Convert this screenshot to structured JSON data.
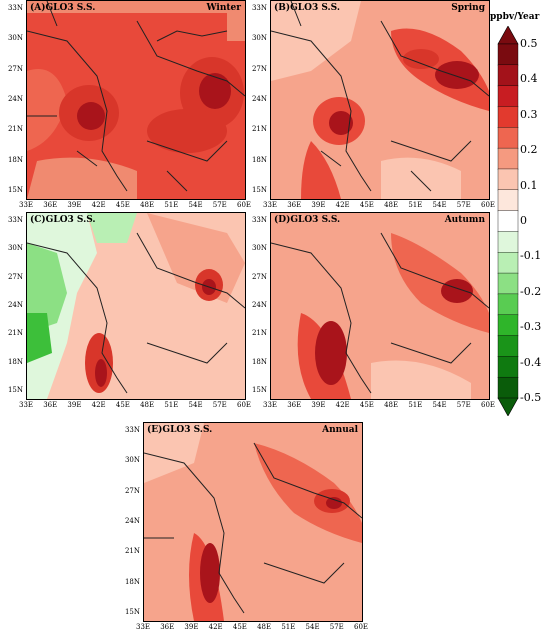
{
  "panels": [
    {
      "id": "A",
      "title": "(A)GLO3  S.S.",
      "season": "Winter"
    },
    {
      "id": "B",
      "title": "(B)GLO3  S.S.",
      "season": "Spring"
    },
    {
      "id": "C",
      "title": "(C)GLO3  S.S.",
      "season": "Summer"
    },
    {
      "id": "D",
      "title": "(D)GLO3  S.S.",
      "season": "Autumn"
    },
    {
      "id": "E",
      "title": "(E)GLO3  S.S.",
      "season": "Annual"
    }
  ],
  "lat_ticks": [
    "33N",
    "30N",
    "27N",
    "24N",
    "21N",
    "18N",
    "15N"
  ],
  "lon_ticks": [
    "33E",
    "36E",
    "39E",
    "42E",
    "45E",
    "48E",
    "51E",
    "54E",
    "57E",
    "60E"
  ],
  "colorbar": {
    "unit": "ppbv/Year",
    "ticks": [
      "0.5",
      "0.4",
      "0.3",
      "0.2",
      "0.1",
      "0",
      "-0.1",
      "-0.2",
      "-0.3",
      "-0.4",
      "-0.5"
    ],
    "colors": [
      "#7a0b10",
      "#a3121a",
      "#c81d22",
      "#e23a2e",
      "#ee6650",
      "#f59a80",
      "#fbc5b1",
      "#fde7dc",
      "#ffffff",
      "#dff7dc",
      "#b9efb4",
      "#8ce084",
      "#59cc52",
      "#2fb52a",
      "#1a9419",
      "#0f7a10",
      "#0a5c0a"
    ]
  },
  "colors": {
    "base_light": "#f6a48c",
    "mid": "#ec6a50",
    "strong": "#d8362a",
    "peak": "#a9141b",
    "neg_light": "#bdf0b6",
    "neg": "#3dbf3a"
  }
}
